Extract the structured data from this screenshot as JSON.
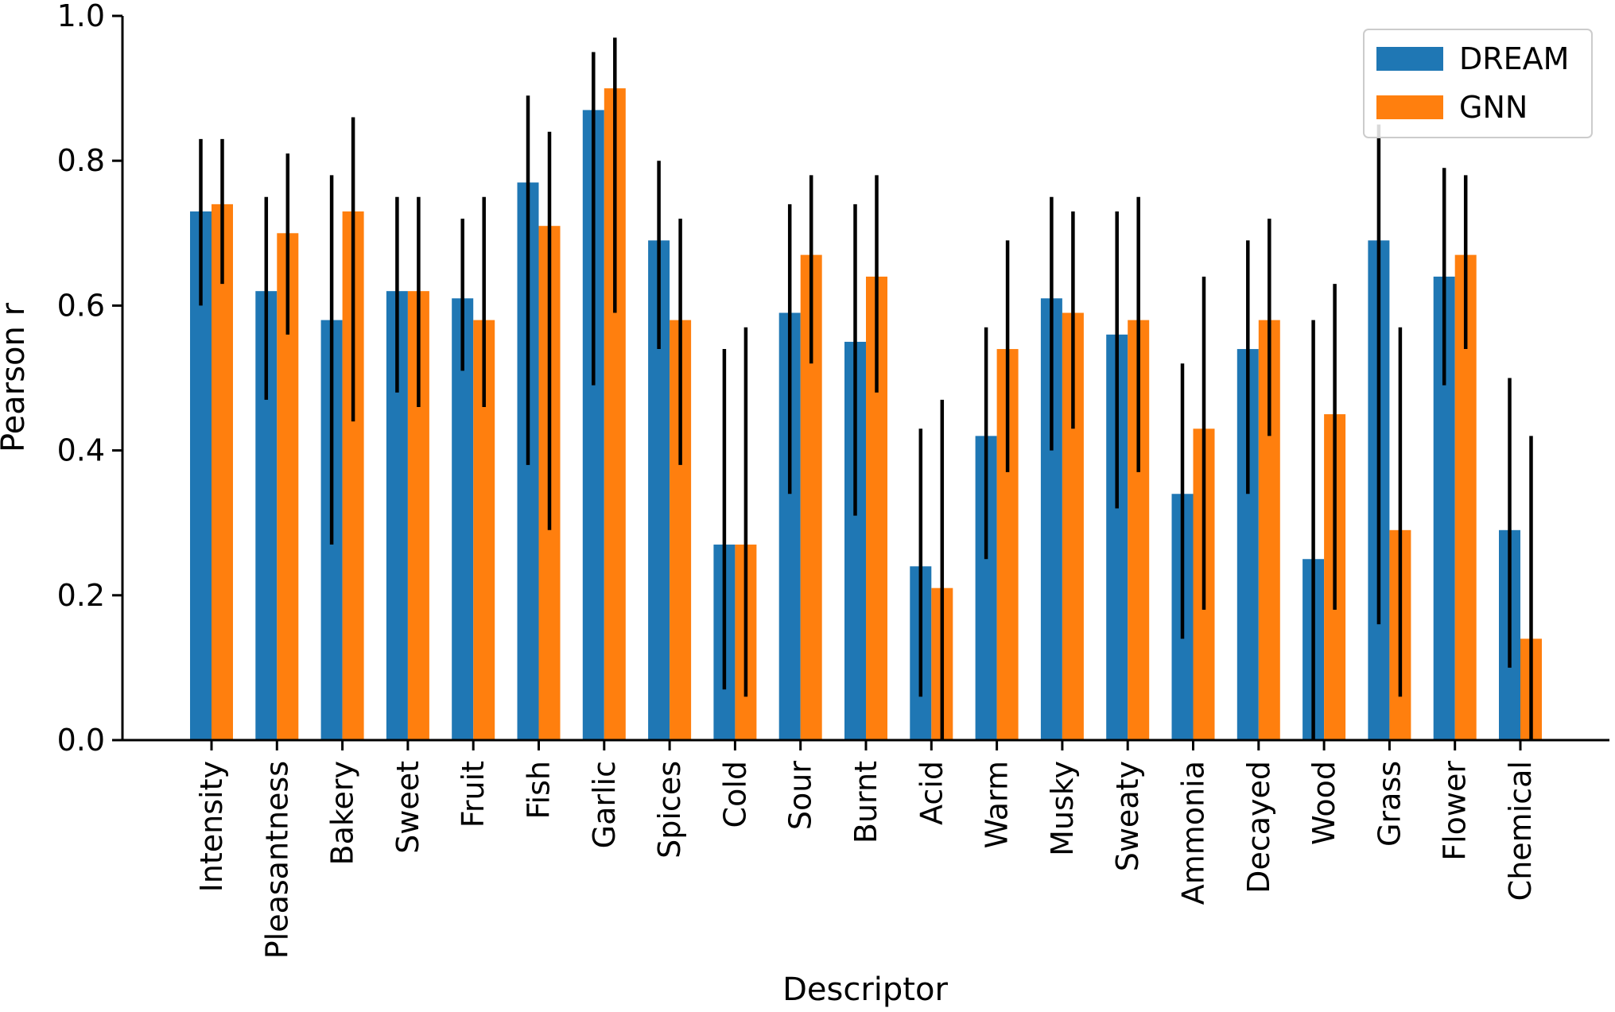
{
  "chart_data": {
    "type": "bar",
    "xlabel": "Descriptor",
    "ylabel": "Pearson r",
    "ylim": [
      0.0,
      1.0
    ],
    "yticks": [
      "0.0",
      "0.2",
      "0.4",
      "0.6",
      "0.8",
      "1.0"
    ],
    "grid": false,
    "legend_position": "top-right",
    "categories": [
      "Intensity",
      "Pleasantness",
      "Bakery",
      "Sweet",
      "Fruit",
      "Fish",
      "Garlic",
      "Spices",
      "Cold",
      "Sour",
      "Burnt",
      "Acid",
      "Warm",
      "Musky",
      "Sweaty",
      "Ammonia",
      "Decayed",
      "Wood",
      "Grass",
      "Flower",
      "Chemical"
    ],
    "series": [
      {
        "name": "DREAM",
        "color": "#1f77b4",
        "values": [
          0.73,
          0.62,
          0.58,
          0.62,
          0.61,
          0.77,
          0.87,
          0.69,
          0.27,
          0.59,
          0.55,
          0.24,
          0.42,
          0.61,
          0.56,
          0.34,
          0.54,
          0.25,
          0.69,
          0.64,
          0.29
        ],
        "err_low": [
          0.6,
          0.47,
          0.27,
          0.48,
          0.51,
          0.38,
          0.49,
          0.54,
          0.07,
          0.34,
          0.31,
          0.06,
          0.25,
          0.4,
          0.32,
          0.14,
          0.34,
          0.0,
          0.16,
          0.49,
          0.1
        ],
        "err_high": [
          0.83,
          0.75,
          0.78,
          0.75,
          0.72,
          0.89,
          0.95,
          0.8,
          0.54,
          0.74,
          0.74,
          0.43,
          0.57,
          0.75,
          0.73,
          0.52,
          0.69,
          0.58,
          0.85,
          0.79,
          0.5
        ]
      },
      {
        "name": "GNN",
        "color": "#ff7f0e",
        "values": [
          0.74,
          0.7,
          0.73,
          0.62,
          0.58,
          0.71,
          0.9,
          0.58,
          0.27,
          0.67,
          0.64,
          0.21,
          0.54,
          0.59,
          0.58,
          0.43,
          0.58,
          0.45,
          0.29,
          0.67,
          0.14
        ],
        "err_low": [
          0.63,
          0.56,
          0.44,
          0.46,
          0.46,
          0.29,
          0.59,
          0.38,
          0.06,
          0.52,
          0.48,
          0.0,
          0.37,
          0.43,
          0.37,
          0.18,
          0.42,
          0.18,
          0.06,
          0.54,
          0.0
        ],
        "err_high": [
          0.83,
          0.81,
          0.86,
          0.75,
          0.75,
          0.84,
          0.97,
          0.72,
          0.57,
          0.78,
          0.78,
          0.47,
          0.69,
          0.73,
          0.75,
          0.64,
          0.72,
          0.63,
          0.57,
          0.78,
          0.42
        ]
      }
    ]
  }
}
